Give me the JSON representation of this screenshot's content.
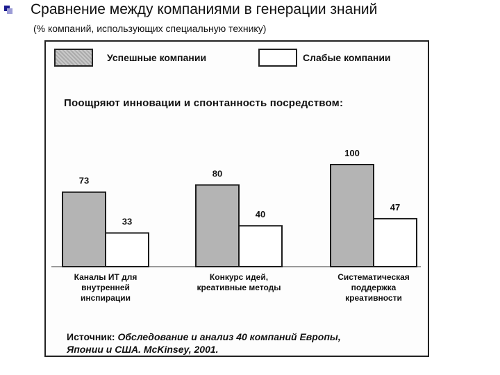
{
  "slide": {
    "title": "Сравнение между компаниями в генерации знаний",
    "subtitle": "(% компаний, использующих специальную технику)"
  },
  "figure": {
    "heading": "Поощряют инновации и спонтанность посредством:",
    "legend": [
      {
        "label": "Успешные компании",
        "pattern": "hatched-gray"
      },
      {
        "label": "Слабые компании",
        "pattern": "white"
      }
    ],
    "source_prefix": "Источник:",
    "source_line1": "Обследование и анализ 40 компаний Европы,",
    "source_line2": "Японии и США. McKinsey, 2001."
  },
  "chart_data": {
    "type": "bar",
    "categories": [
      [
        "Каналы ИТ для",
        "внутренней",
        "инспирации"
      ],
      [
        "Конкурс идей,",
        "креативные методы"
      ],
      [
        "Систематическая",
        "поддержка",
        "креативности"
      ]
    ],
    "series": [
      {
        "name": "Успешные компании",
        "values": [
          73,
          80,
          100
        ],
        "color": "#b4b4b4"
      },
      {
        "name": "Слабые компании",
        "values": [
          33,
          40,
          47
        ],
        "color": "#ffffff"
      }
    ],
    "ylim": [
      0,
      100
    ],
    "grid": false,
    "legend_position": "top"
  }
}
